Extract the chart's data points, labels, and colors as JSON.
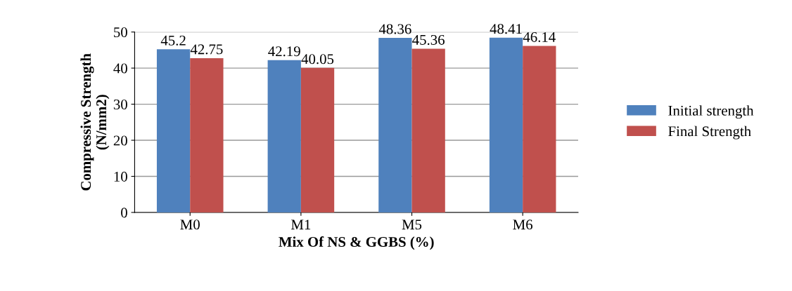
{
  "chart_data": {
    "type": "bar",
    "xlabel": "Mix Of NS & GGBS (%)",
    "ylabel": "Compressive Strength\n(N/mm2)",
    "categories": [
      "M0",
      "M1",
      "M5",
      "M6"
    ],
    "series": [
      {
        "name": "Initial strength",
        "color": "#4f81bd",
        "values": [
          45.2,
          42.19,
          48.36,
          48.41
        ]
      },
      {
        "name": "Final Strength",
        "color": "#c0504d",
        "values": [
          42.75,
          40.05,
          45.36,
          46.14
        ]
      }
    ],
    "ylim": [
      0,
      50
    ],
    "yticks": [
      0,
      10,
      20,
      30,
      40,
      50
    ],
    "grid": "y",
    "legend": "right",
    "data_labels": true
  }
}
